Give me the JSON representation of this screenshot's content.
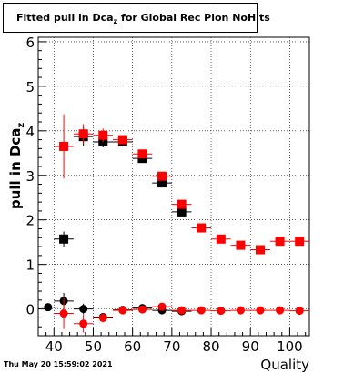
{
  "title": {
    "prefix": "Fitted pull in Dca",
    "subscript": "z",
    "suffix": " for Global Rec Pion NoHits"
  },
  "timestamp": "Thu May 20 15:59:02 2021",
  "chart_data": {
    "type": "scatter",
    "title": "Fitted pull in Dcaz for Global Rec Pion NoHits",
    "xlabel": "Quality",
    "ylabel": "pull in Dcaz",
    "xlim": [
      36,
      105
    ],
    "ylim": [
      -0.6,
      6.1
    ],
    "x_ticks": [
      40,
      50,
      60,
      70,
      80,
      90,
      100
    ],
    "y_ticks": [
      0,
      1,
      2,
      3,
      4,
      5,
      6
    ],
    "grid": true,
    "x_bin_halfwidth": 2.5,
    "series": [
      {
        "color": "#000000",
        "marker": "square",
        "x": [
          42.5,
          47.5,
          52.5,
          57.5,
          62.5,
          67.5,
          72.5
        ],
        "y": [
          1.57,
          3.87,
          3.75,
          3.75,
          3.38,
          2.83,
          2.18
        ],
        "yerr": [
          0.17,
          0.2,
          0.12,
          0.08,
          0.08,
          0.07,
          0.07
        ]
      },
      {
        "color": "#ff0000",
        "marker": "square",
        "x": [
          42.5,
          47.5,
          52.5,
          57.5,
          62.5,
          67.5,
          72.5,
          77.5,
          82.5,
          87.5,
          92.5,
          97.5,
          102.5
        ],
        "y": [
          3.65,
          3.93,
          3.9,
          3.8,
          3.48,
          2.98,
          2.35,
          1.82,
          1.57,
          1.43,
          1.33,
          1.52,
          1.52
        ],
        "yerr": [
          0.72,
          0.22,
          0.15,
          0.09,
          0.09,
          0.08,
          0.08,
          0.06,
          0.06,
          0.05,
          0.05,
          0.05,
          0.05
        ]
      },
      {
        "color": "#000000",
        "marker": "circle",
        "x": [
          38.5,
          42.5,
          47.5,
          52.5,
          57.5,
          62.5,
          67.5,
          72.5
        ],
        "y": [
          0.04,
          0.18,
          0.0,
          -0.18,
          -0.02,
          0.02,
          -0.03,
          -0.05
        ],
        "yerr": [
          0.03,
          0.18,
          0.12,
          0.08,
          0.04,
          0.04,
          0.04,
          0.04
        ]
      },
      {
        "color": "#ff0000",
        "marker": "circle",
        "x": [
          42.5,
          47.5,
          52.5,
          57.5,
          62.5,
          67.5,
          72.5,
          77.5,
          82.5,
          87.5,
          92.5,
          97.5,
          102.5
        ],
        "y": [
          -0.1,
          -0.33,
          -0.2,
          -0.03,
          -0.01,
          0.05,
          -0.03,
          -0.03,
          -0.04,
          -0.03,
          -0.03,
          -0.03,
          -0.04
        ],
        "yerr": [
          0.35,
          0.2,
          0.1,
          0.05,
          0.05,
          0.04,
          0.04,
          0.03,
          0.03,
          0.03,
          0.03,
          0.03,
          0.03
        ]
      }
    ]
  }
}
